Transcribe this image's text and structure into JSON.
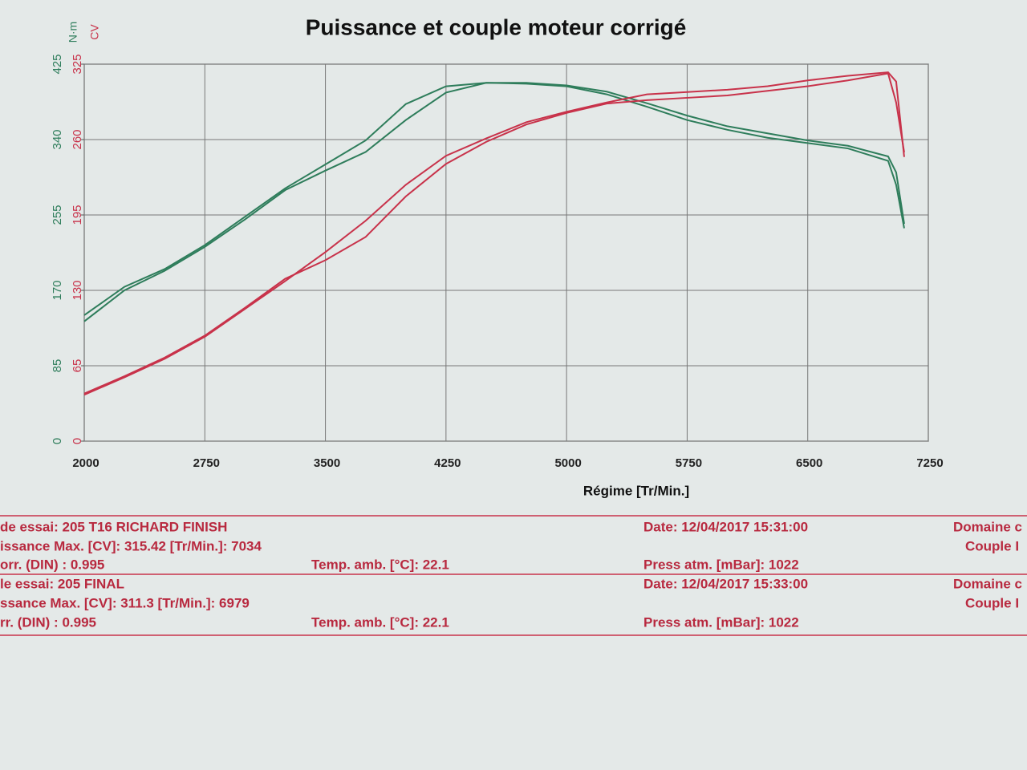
{
  "chart_data": {
    "type": "line",
    "title": "Puissance et couple moteur corrigé",
    "xlabel": "Régime [Tr/Min.]",
    "ylabel": "N·m",
    "y2label": "CV",
    "x": [
      2000,
      2250,
      2500,
      2750,
      3000,
      3250,
      3500,
      3750,
      4000,
      4250,
      4500,
      4750,
      5000,
      5250,
      5500,
      5750,
      6000,
      6250,
      6500,
      6750,
      7000,
      7050,
      7100
    ],
    "xlim": [
      2000,
      7250
    ],
    "xticks": [
      2000,
      2750,
      3500,
      4250,
      5000,
      5750,
      6500,
      7250
    ],
    "ylim": [
      0,
      425
    ],
    "yticks": [
      0,
      85,
      170,
      255,
      340,
      425
    ],
    "y2lim": [
      0,
      325
    ],
    "y2ticks": [
      0,
      65,
      130,
      195,
      260,
      325
    ],
    "grid": true,
    "y_color": "#2e7d5b",
    "y2_color": "#c8324a",
    "series": [
      {
        "color": "#2e7d5b",
        "values": [
          142,
          174,
          194,
          221,
          253,
          285,
          312,
          339,
          380,
          400,
          404,
          403,
          400,
          391,
          377,
          362,
          351,
          342,
          336,
          330,
          316,
          289,
          240
        ]
      },
      {
        "color": "#2e7d5b",
        "values": [
          135,
          170,
          192,
          219,
          250,
          283,
          305,
          326,
          362,
          393,
          404,
          404,
          401,
          394,
          381,
          367,
          355,
          347,
          339,
          333,
          321,
          303,
          245
        ]
      },
      {
        "color": "#c8324a",
        "axis": "y2",
        "values": [
          40,
          55,
          71,
          90,
          114,
          138,
          163,
          190,
          221,
          246,
          261,
          275,
          284,
          292,
          299,
          301,
          303,
          306,
          311,
          315,
          318,
          310,
          245
        ]
      },
      {
        "color": "#c8324a",
        "axis": "y2",
        "values": [
          41,
          56,
          72,
          91,
          115,
          140,
          156,
          176,
          211,
          239,
          258,
          273,
          283,
          291,
          294,
          296,
          298,
          302,
          306,
          311,
          317,
          292,
          249
        ]
      }
    ]
  },
  "info": {
    "runs": [
      {
        "name": "de essai: 205 T16 RICHARD FINISH",
        "date": "Date: 12/04/2017   15:31:00",
        "domain": "Domaine c",
        "power": "issance Max. [CV]: 315.42   [Tr/Min.]: 7034",
        "couple": "Couple I",
        "corr": "orr. (DIN) : 0.995",
        "temp": "Temp. amb. [°C]: 22.1",
        "press": "Press atm. [mBar]: 1022"
      },
      {
        "name": "le essai: 205 FINAL",
        "date": "Date: 12/04/2017   15:33:00",
        "domain": "Domaine c",
        "power": "ssance Max. [CV]: 311.3   [Tr/Min.]: 6979",
        "couple": "Couple I",
        "corr": "rr. (DIN) : 0.995",
        "temp": "Temp. amb. [°C]: 22.1",
        "press": "Press atm. [mBar]: 1022"
      }
    ]
  }
}
